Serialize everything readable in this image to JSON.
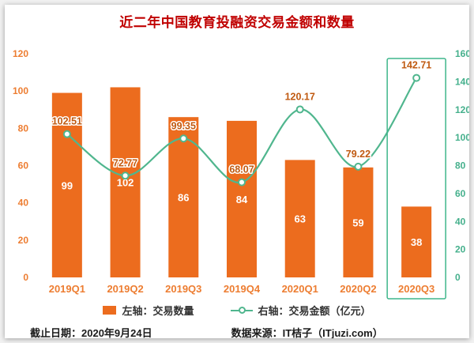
{
  "title": "近二年中国教育投融资交易金额和数量",
  "chart_data": {
    "type": "bar",
    "subtype": "combo-bar-line",
    "categories": [
      "2019Q1",
      "2019Q2",
      "2019Q3",
      "2019Q4",
      "2020Q1",
      "2020Q2",
      "2020Q3"
    ],
    "series": [
      {
        "name": "左轴：交易数量",
        "type": "bar",
        "axis": "left",
        "color": "#ec6c1e",
        "values": [
          99,
          102,
          86,
          84,
          63,
          59,
          38
        ]
      },
      {
        "name": "右轴：交易金额（亿元）",
        "type": "line",
        "axis": "right",
        "color": "#50b68e",
        "values": [
          102.51,
          72.77,
          99.35,
          68.07,
          120.17,
          79.22,
          142.71
        ]
      }
    ],
    "left_axis": {
      "min": 0,
      "max": 120,
      "step": 20,
      "color": "#ed7d31"
    },
    "right_axis": {
      "min": 0,
      "max": 160,
      "step": 20,
      "color": "#45b08c"
    },
    "value_label_color": "#c05a11",
    "highlight_category": "2020Q3",
    "highlight_color": "#3eb68b",
    "grid": false,
    "legend_position": "bottom",
    "title": "近二年中国教育投融资交易金额和数量"
  },
  "footer": {
    "date": "截止日期：2020年9月24日",
    "source": "数据来源：IT桔子（ITjuzi.com）"
  }
}
